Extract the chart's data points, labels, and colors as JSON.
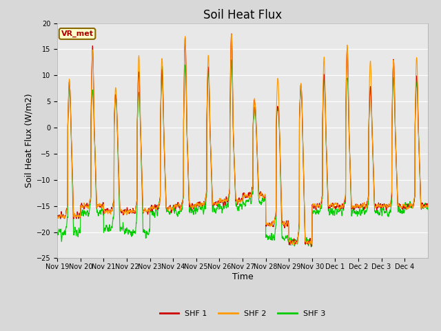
{
  "title": "Soil Heat Flux",
  "xlabel": "Time",
  "ylabel": "Soil Heat Flux (W/m2)",
  "ylim": [
    -25,
    20
  ],
  "yticks": [
    -25,
    -20,
    -15,
    -10,
    -5,
    0,
    5,
    10,
    15,
    20
  ],
  "legend_labels": [
    "SHF 1",
    "SHF 2",
    "SHF 3"
  ],
  "legend_colors": [
    "#cc0000",
    "#ff9900",
    "#00cc00"
  ],
  "annotation_text": "VR_met",
  "annotation_color": "#aa0000",
  "annotation_bg": "#ffffcc",
  "annotation_border": "#886600",
  "fig_bg_color": "#ffffff",
  "plot_bg_inner": "#e8e8e8",
  "plot_bg_outer": "#d0d0d0",
  "title_fontsize": 12,
  "axis_label_fontsize": 9,
  "tick_fontsize": 7,
  "n_days": 16,
  "xtick_labels": [
    "Nov 19",
    "Nov 20",
    "Nov 21",
    "Nov 22",
    "Nov 23",
    "Nov 24",
    "Nov 25",
    "Nov 26",
    "Nov 27",
    "Nov 28",
    "Nov 29",
    "Nov 30",
    "Dec 1",
    "Dec 2",
    "Dec 3",
    "Dec 4"
  ],
  "shf1_color": "#cc0000",
  "shf2_color": "#ff9900",
  "shf3_color": "#00cc00",
  "line_width": 0.8,
  "day_peaks_1": [
    8.5,
    15.2,
    6.5,
    10.5,
    11.0,
    17.0,
    11.5,
    18.0,
    5.3,
    4.5,
    8.0,
    10.5,
    15.5,
    7.5,
    13.0,
    10.0
  ],
  "day_peaks_2": [
    9.0,
    15.2,
    7.5,
    13.8,
    13.5,
    17.2,
    13.8,
    18.0,
    5.3,
    9.8,
    8.0,
    13.5,
    15.5,
    13.0,
    13.0,
    13.5
  ],
  "day_peaks_3": [
    7.5,
    7.5,
    6.2,
    6.5,
    11.0,
    11.0,
    10.8,
    12.5,
    4.0,
    3.8,
    7.5,
    10.2,
    10.0,
    7.0,
    9.5,
    8.5
  ],
  "night_vals_1": [
    -17,
    -15,
    -16,
    -16,
    -15.5,
    -15,
    -14.5,
    -14,
    -13,
    -18.5,
    -22,
    -15,
    -15,
    -15,
    -15,
    -15
  ],
  "night_vals_2": [
    -17,
    -15,
    -16,
    -16,
    -15.5,
    -15,
    -14.5,
    -14,
    -13,
    -18.5,
    -22,
    -15,
    -15,
    -15,
    -15,
    -15
  ],
  "night_vals_3": [
    -20,
    -16,
    -19.5,
    -20,
    -16,
    -16,
    -15.5,
    -15,
    -14,
    -21,
    -22,
    -16,
    -16,
    -16,
    -16,
    -15
  ]
}
